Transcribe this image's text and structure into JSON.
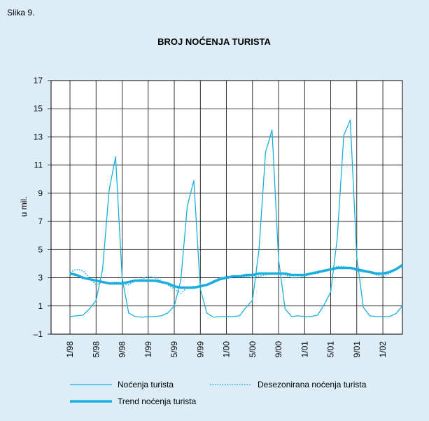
{
  "figure_label": "Slika 9.",
  "chart_data": {
    "type": "line",
    "title": "BROJ NOĆENJA TURISTA",
    "y_label": "u mil.",
    "categories": [
      "1/98",
      null,
      null,
      null,
      "5/98",
      null,
      null,
      null,
      "9/98",
      null,
      null,
      null,
      "1/99",
      null,
      null,
      null,
      "5/99",
      null,
      null,
      null,
      "9/99",
      null,
      null,
      null,
      "1/00",
      null,
      null,
      null,
      "5/00",
      null,
      null,
      null,
      "9/00",
      null,
      null,
      null,
      "1/01",
      null,
      null,
      null,
      "5/01",
      null,
      null,
      null,
      "9/01",
      null,
      null,
      null,
      "1/02",
      null,
      null,
      null
    ],
    "ylim": [
      -1,
      17
    ],
    "yticks": [
      {
        "value": -1,
        "label": "–1"
      },
      1,
      3,
      5,
      7,
      9,
      11,
      13,
      15,
      17
    ],
    "grid": true,
    "series": [
      {
        "name": "Noćenja turista",
        "color": "#1aaee0",
        "style": "solid",
        "values": [
          0.25,
          0.3,
          0.35,
          0.8,
          1.4,
          3.6,
          9.2,
          11.6,
          3.0,
          0.5,
          0.25,
          0.2,
          0.25,
          0.25,
          0.3,
          0.5,
          1.0,
          2.8,
          8.1,
          9.9,
          2.2,
          0.5,
          0.2,
          0.25,
          0.25,
          0.25,
          0.3,
          0.9,
          1.4,
          5.0,
          11.9,
          13.5,
          4.3,
          0.8,
          0.25,
          0.3,
          0.25,
          0.25,
          0.35,
          1.1,
          2.0,
          5.8,
          13.1,
          14.2,
          4.5,
          0.9,
          0.3,
          0.25,
          0.25,
          0.25,
          0.45,
          1.0
        ]
      },
      {
        "name": "Desezonirana noćenja turista",
        "color": "#1aaee0",
        "style": "dotted",
        "values": [
          3.4,
          3.6,
          3.5,
          3.0,
          2.5,
          2.7,
          2.6,
          2.7,
          2.6,
          2.5,
          2.8,
          2.9,
          3.1,
          3.0,
          2.8,
          2.5,
          2.2,
          1.9,
          2.3,
          2.4,
          2.3,
          2.5,
          2.8,
          3.0,
          3.1,
          3.1,
          3.0,
          3.1,
          3.0,
          3.1,
          3.2,
          3.3,
          3.3,
          3.2,
          3.0,
          3.0,
          3.1,
          3.3,
          3.3,
          3.5,
          3.6,
          3.8,
          3.8,
          3.7,
          3.5,
          3.4,
          3.4,
          3.2,
          3.1,
          3.3,
          3.6,
          3.9
        ]
      },
      {
        "name": "Trend noćenja turista",
        "color": "#1aaee0",
        "style": "thick",
        "values": [
          3.3,
          3.2,
          3.0,
          2.9,
          2.8,
          2.7,
          2.6,
          2.6,
          2.6,
          2.7,
          2.8,
          2.8,
          2.8,
          2.8,
          2.7,
          2.6,
          2.4,
          2.3,
          2.3,
          2.3,
          2.4,
          2.5,
          2.7,
          2.9,
          3.0,
          3.1,
          3.1,
          3.2,
          3.2,
          3.3,
          3.3,
          3.3,
          3.3,
          3.3,
          3.2,
          3.2,
          3.2,
          3.3,
          3.4,
          3.5,
          3.6,
          3.7,
          3.7,
          3.7,
          3.6,
          3.5,
          3.4,
          3.3,
          3.3,
          3.4,
          3.6,
          3.9
        ]
      }
    ]
  }
}
